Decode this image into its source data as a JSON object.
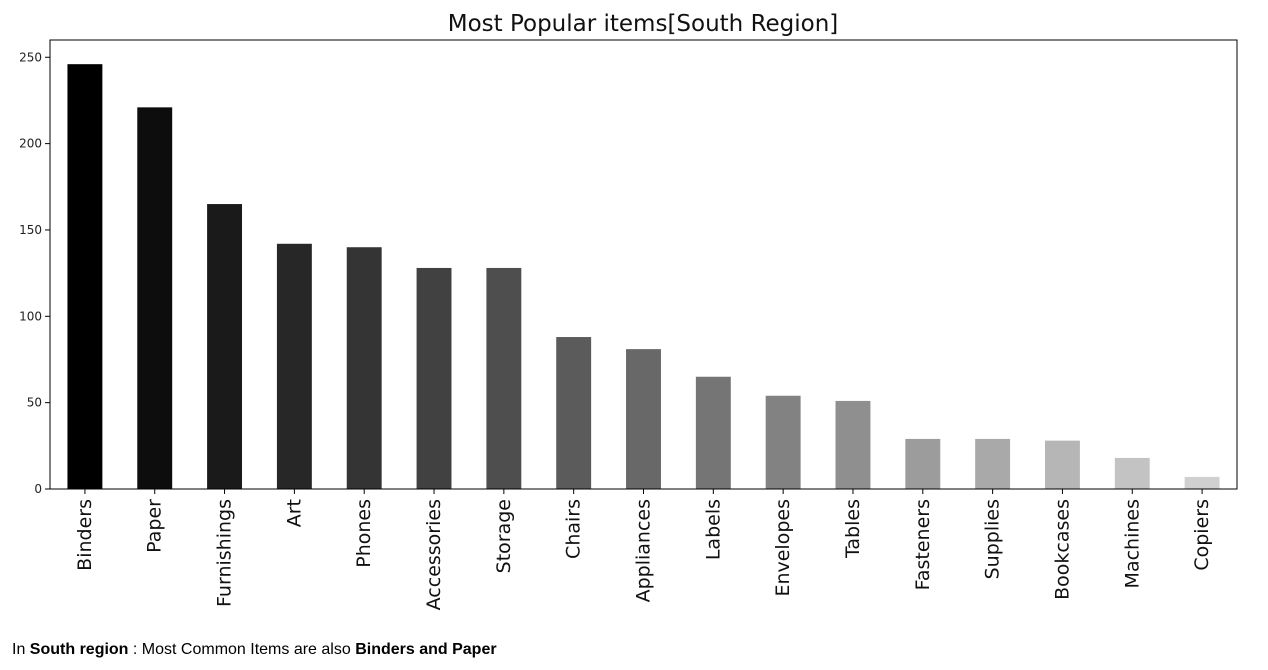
{
  "chart_data": {
    "type": "bar",
    "title": "Most Popular items[South Region]",
    "xlabel": "",
    "ylabel": "",
    "ylim": [
      0,
      260
    ],
    "yticks": [
      0,
      50,
      100,
      150,
      200,
      250
    ],
    "grid": false,
    "categories": [
      "Binders",
      "Paper",
      "Furnishings",
      "Art",
      "Phones",
      "Accessories",
      "Storage",
      "Chairs",
      "Appliances",
      "Labels",
      "Envelopes",
      "Tables",
      "Fasteners",
      "Supplies",
      "Bookcases",
      "Machines",
      "Copiers"
    ],
    "values": [
      246,
      221,
      165,
      142,
      140,
      128,
      128,
      88,
      81,
      65,
      54,
      51,
      29,
      29,
      28,
      18,
      7
    ],
    "colors": [
      "#000000",
      "#0d0d0d",
      "#1a1a1a",
      "#272727",
      "#343434",
      "#414141",
      "#4e4e4e",
      "#5b5b5b",
      "#686868",
      "#757575",
      "#828282",
      "#8f8f8f",
      "#9c9c9c",
      "#a9a9a9",
      "#b6b6b6",
      "#c3c3c3",
      "#d0d0d0"
    ]
  },
  "caption": {
    "prefix": "In ",
    "region": "South region",
    "middle": " : Most Common Items are also ",
    "items": "Binders and Paper"
  }
}
